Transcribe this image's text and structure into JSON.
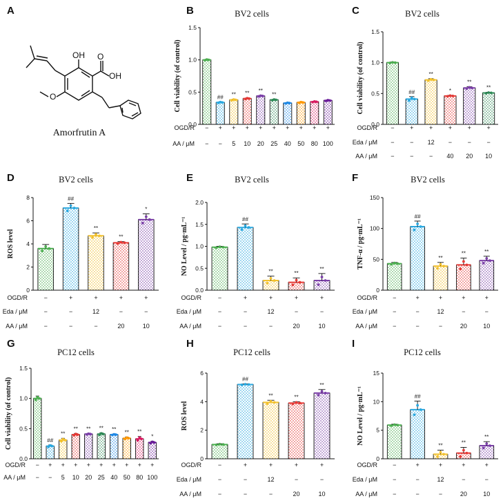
{
  "molecule": {
    "letter": "A",
    "name": "Amorfrutin A",
    "atoms": [
      "OH",
      "O",
      "OH",
      "O"
    ]
  },
  "colors": [
    "#4caf50",
    "#29a8e0",
    "#f2c12e",
    "#e53935",
    "#7b3fa8",
    "#2e8b57",
    "#1e88e5",
    "#ff9800",
    "#d81b60",
    "#6a1b9a"
  ],
  "chart_data": [
    {
      "id": "B",
      "letter": "B",
      "type": "bar",
      "title": "BV2 cells",
      "ylabel": "Cell viability (of control)",
      "ylim": [
        0,
        1.5
      ],
      "yticks": [
        "0.0",
        "0.5",
        "1.0",
        "1.5"
      ],
      "rows": [
        {
          "label": "OGD/R",
          "values": [
            "−",
            "+",
            "+",
            "+",
            "+",
            "+",
            "+",
            "+",
            "+",
            "+"
          ]
        },
        {
          "label": "AA / μM",
          "values": [
            "−",
            "−",
            "5",
            "10",
            "20",
            "25",
            "40",
            "50",
            "80",
            "100"
          ]
        }
      ],
      "values": [
        1.0,
        0.34,
        0.38,
        0.4,
        0.44,
        0.38,
        0.33,
        0.34,
        0.35,
        0.37
      ],
      "errors": [
        0.01,
        0.01,
        0.01,
        0.01,
        0.01,
        0.01,
        0.01,
        0.01,
        0.01,
        0.01
      ],
      "sig": [
        "",
        "##",
        "**",
        "**",
        "**",
        "**",
        "",
        "",
        "",
        ""
      ],
      "color_index": [
        0,
        1,
        2,
        3,
        4,
        5,
        6,
        7,
        8,
        9
      ]
    },
    {
      "id": "C",
      "letter": "C",
      "type": "bar",
      "title": "BV2 cells",
      "ylabel": "Cell viability (of control)",
      "ylim": [
        0,
        1.5
      ],
      "yticks": [
        "0.0",
        "0.5",
        "1.0",
        "1.5"
      ],
      "rows": [
        {
          "label": "OGD/R",
          "values": [
            "−",
            "+",
            "+",
            "+",
            "+",
            "+"
          ]
        },
        {
          "label": "Eda / μM",
          "values": [
            "−",
            "−",
            "12",
            "−",
            "−",
            "−"
          ]
        },
        {
          "label": "AA / μM",
          "values": [
            "−",
            "−",
            "−",
            "40",
            "20",
            "10"
          ]
        }
      ],
      "values": [
        1.0,
        0.41,
        0.72,
        0.46,
        0.59,
        0.51
      ],
      "errors": [
        0.01,
        0.04,
        0.02,
        0.01,
        0.02,
        0.01
      ],
      "sig": [
        "",
        "##",
        "**",
        "*",
        "**",
        "**"
      ],
      "color_index": [
        0,
        1,
        2,
        3,
        4,
        5
      ]
    },
    {
      "id": "D",
      "letter": "D",
      "type": "bar",
      "title": "BV2 cells",
      "ylabel": "ROS level",
      "ylim": [
        0,
        8
      ],
      "yticks": [
        "0",
        "2",
        "4",
        "6",
        "8"
      ],
      "rows": [
        {
          "label": "OGD/R",
          "values": [
            "−",
            "+",
            "+",
            "+",
            "+"
          ]
        },
        {
          "label": "Eda / μM",
          "values": [
            "−",
            "−",
            "12",
            "−",
            "−"
          ]
        },
        {
          "label": "AA / μM",
          "values": [
            "−",
            "−",
            "−",
            "20",
            "10"
          ]
        }
      ],
      "values": [
        3.6,
        7.1,
        4.7,
        4.1,
        6.1
      ],
      "errors": [
        0.35,
        0.4,
        0.25,
        0.1,
        0.5
      ],
      "sig": [
        "",
        "##",
        "**",
        "**",
        "*"
      ],
      "color_index": [
        0,
        1,
        2,
        3,
        4
      ]
    },
    {
      "id": "E",
      "letter": "E",
      "type": "bar",
      "title": "BV2 cells",
      "ylabel": "NO Level / pg·mL⁻¹",
      "ylim": [
        0,
        2.0
      ],
      "yticks": [
        "0.0",
        "0.5",
        "1.0",
        "1.5",
        "2.0"
      ],
      "rows": [
        {
          "label": "OGD/R",
          "values": [
            "−",
            "+",
            "+",
            "+",
            "+"
          ]
        },
        {
          "label": "Eda / μM",
          "values": [
            "−",
            "−",
            "12",
            "−",
            "−"
          ]
        },
        {
          "label": "AA / μM",
          "values": [
            "−",
            "−",
            "−",
            "20",
            "10"
          ]
        }
      ],
      "values": [
        0.98,
        1.43,
        0.22,
        0.18,
        0.22
      ],
      "errors": [
        0.02,
        0.08,
        0.1,
        0.1,
        0.16
      ],
      "sig": [
        "",
        "##",
        "**",
        "**",
        "**"
      ],
      "color_index": [
        0,
        1,
        2,
        3,
        4
      ]
    },
    {
      "id": "F",
      "letter": "F",
      "type": "bar",
      "title": "BV2 cells",
      "ylabel": "TNF-α / pg·mL⁻¹",
      "ylim": [
        0,
        150
      ],
      "yticks": [
        "0",
        "50",
        "100",
        "150"
      ],
      "rows": [
        {
          "label": "OGD/R",
          "values": [
            "−",
            "+",
            "+",
            "+",
            "+"
          ]
        },
        {
          "label": "Eda / μM",
          "values": [
            "−",
            "−",
            "12",
            "−",
            "−"
          ]
        },
        {
          "label": "AA / μM",
          "values": [
            "−",
            "−",
            "−",
            "20",
            "10"
          ]
        }
      ],
      "values": [
        43,
        103,
        39,
        41,
        48
      ],
      "errors": [
        2,
        9,
        6,
        11,
        7
      ],
      "sig": [
        "",
        "##",
        "**",
        "**",
        "**"
      ],
      "color_index": [
        0,
        1,
        2,
        3,
        4
      ]
    },
    {
      "id": "G",
      "letter": "G",
      "type": "bar",
      "title": "PC12 cells",
      "ylabel": "Cell viability (of control)",
      "ylim": [
        0,
        1.5
      ],
      "yticks": [
        "0.0",
        "0.5",
        "1.0",
        "1.5"
      ],
      "rows": [
        {
          "label": "OGD/R",
          "values": [
            "−",
            "+",
            "+",
            "+",
            "+",
            "+",
            "+",
            "+",
            "+",
            "+"
          ]
        },
        {
          "label": "AA / μM",
          "values": [
            "−",
            "−",
            "5",
            "10",
            "20",
            "25",
            "40",
            "50",
            "80",
            "100"
          ]
        }
      ],
      "values": [
        1.0,
        0.21,
        0.31,
        0.4,
        0.41,
        0.41,
        0.4,
        0.34,
        0.33,
        0.27
      ],
      "errors": [
        0.04,
        0.02,
        0.03,
        0.02,
        0.01,
        0.02,
        0.01,
        0.02,
        0.04,
        0.02
      ],
      "sig": [
        "",
        "##",
        "**",
        "**",
        "**",
        "**",
        "**",
        "**",
        "**",
        "*"
      ],
      "color_index": [
        0,
        1,
        2,
        3,
        4,
        5,
        6,
        7,
        8,
        9
      ]
    },
    {
      "id": "H",
      "letter": "H",
      "type": "bar",
      "title": "PC12 cells",
      "ylabel": "ROS level",
      "ylim": [
        0,
        6
      ],
      "yticks": [
        "0",
        "2",
        "4",
        "6"
      ],
      "rows": [
        {
          "label": "OGD/R",
          "values": [
            "−",
            "+",
            "+",
            "+",
            "+"
          ]
        },
        {
          "label": "Eda / μM",
          "values": [
            "−",
            "−",
            "12",
            "−",
            "−"
          ]
        },
        {
          "label": "AA / μM",
          "values": [
            "−",
            "−",
            "−",
            "20",
            "10"
          ]
        }
      ],
      "values": [
        1.0,
        5.2,
        3.95,
        3.9,
        4.6
      ],
      "errors": [
        0.05,
        0.04,
        0.15,
        0.1,
        0.25
      ],
      "sig": [
        "",
        "##",
        "**",
        "**",
        "**"
      ],
      "color_index": [
        0,
        1,
        2,
        3,
        4
      ]
    },
    {
      "id": "I",
      "letter": "I",
      "type": "bar",
      "title": "PC12 cells",
      "ylabel": "NO Level / pg·mL⁻¹",
      "ylim": [
        0,
        15
      ],
      "yticks": [
        "0",
        "5",
        "10",
        "15"
      ],
      "rows": [
        {
          "label": "OGD/R",
          "values": [
            "−",
            "+",
            "+",
            "+",
            "+"
          ]
        },
        {
          "label": "Eda / μM",
          "values": [
            "−",
            "−",
            "12",
            "−",
            "−"
          ]
        },
        {
          "label": "AA / μM",
          "values": [
            "−",
            "−",
            "−",
            "20",
            "10"
          ]
        }
      ],
      "values": [
        5.9,
        8.6,
        0.8,
        1.0,
        2.3
      ],
      "errors": [
        0.15,
        1.5,
        0.7,
        1.0,
        0.7
      ],
      "sig": [
        "",
        "##",
        "**",
        "**",
        "**"
      ],
      "color_index": [
        0,
        1,
        2,
        3,
        4
      ]
    }
  ]
}
